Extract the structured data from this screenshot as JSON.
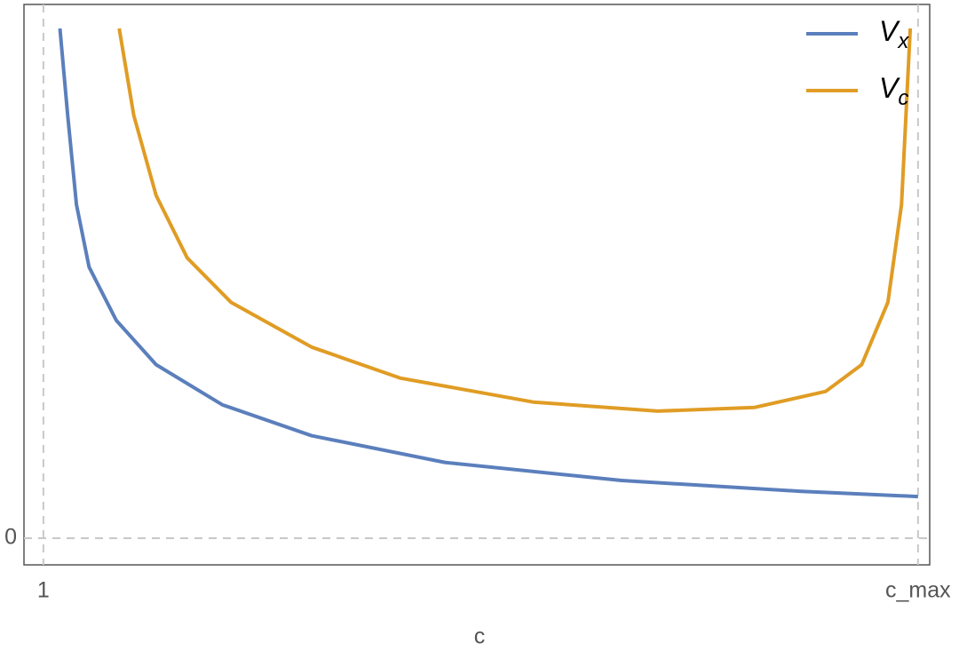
{
  "chart_data": {
    "type": "line",
    "x_label": "c",
    "xlim": [
      0.8,
      10.12
    ],
    "ylim": [
      -0.5,
      10
    ],
    "xticks": [
      1,
      {
        "value": 10,
        "label": "c_max"
      }
    ],
    "yticks": [
      0
    ],
    "grid": true,
    "legend": "top-right",
    "series": [
      {
        "name": "Vx",
        "color": "#5b7fbc",
        "x": [
          1.17,
          1.25,
          1.34,
          1.47,
          1.75,
          2.16,
          2.84,
          3.76,
          5.13,
          6.95,
          8.78,
          10
        ],
        "values": [
          9.55,
          7.92,
          6.25,
          5.08,
          4.08,
          3.25,
          2.5,
          1.92,
          1.42,
          1.08,
          0.88,
          0.78
        ]
      },
      {
        "name": "Vc",
        "color": "#e09c24",
        "x": [
          1.78,
          1.93,
          2.16,
          2.48,
          2.93,
          3.76,
          4.67,
          6.04,
          7.32,
          8.32,
          9.05,
          9.42,
          9.69,
          9.83,
          9.92
        ],
        "values": [
          9.55,
          7.92,
          6.42,
          5.25,
          4.42,
          3.58,
          3.0,
          2.55,
          2.38,
          2.45,
          2.75,
          3.25,
          4.42,
          6.25,
          9.55
        ]
      }
    ]
  }
}
